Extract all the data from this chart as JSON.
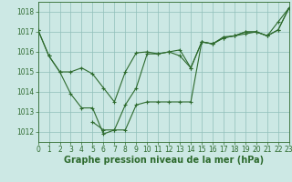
{
  "lines": [
    [
      1017.1,
      1015.8,
      1015.0,
      1013.9,
      1013.2,
      1013.2,
      1011.9,
      1012.1,
      1012.1,
      1013.35,
      1013.5,
      1013.5,
      1013.5,
      1013.5,
      1013.5,
      1016.5,
      1016.4,
      1016.7,
      1016.8,
      1016.9,
      1017.0,
      1016.8,
      1017.1,
      1018.2
    ],
    [
      1017.1,
      1015.8,
      1015.0,
      1015.0,
      1015.2,
      1014.9,
      1014.2,
      1013.5,
      1015.0,
      1015.95,
      1016.0,
      1015.9,
      1016.0,
      1016.1,
      1015.2,
      1016.5,
      1016.4,
      1016.75,
      1016.8,
      1017.0,
      1017.0,
      1016.8,
      1017.5,
      1018.2
    ],
    [
      null,
      null,
      null,
      null,
      null,
      1012.5,
      1012.1,
      1012.1,
      1013.35,
      1014.2,
      1015.9,
      1015.9,
      1016.0,
      1015.8,
      1015.2,
      1016.5,
      1016.4,
      1016.7,
      1016.8,
      1017.0,
      1017.0,
      1016.8,
      1017.1,
      1018.2
    ]
  ],
  "x": [
    0,
    1,
    2,
    3,
    4,
    5,
    6,
    7,
    8,
    9,
    10,
    11,
    12,
    13,
    14,
    15,
    16,
    17,
    18,
    19,
    20,
    21,
    22,
    23
  ],
  "xlim": [
    0,
    23
  ],
  "ylim": [
    1011.5,
    1018.5
  ],
  "yticks": [
    1012,
    1013,
    1014,
    1015,
    1016,
    1017,
    1018
  ],
  "xticks": [
    0,
    1,
    2,
    3,
    4,
    5,
    6,
    7,
    8,
    9,
    10,
    11,
    12,
    13,
    14,
    15,
    16,
    17,
    18,
    19,
    20,
    21,
    22,
    23
  ],
  "bg_color": "#cce8e4",
  "grid_color": "#90bfba",
  "line_color": "#2d6a2d",
  "xlabel": "Graphe pression niveau de la mer (hPa)",
  "tick_fontsize": 5.5,
  "xlabel_fontsize": 7.0
}
